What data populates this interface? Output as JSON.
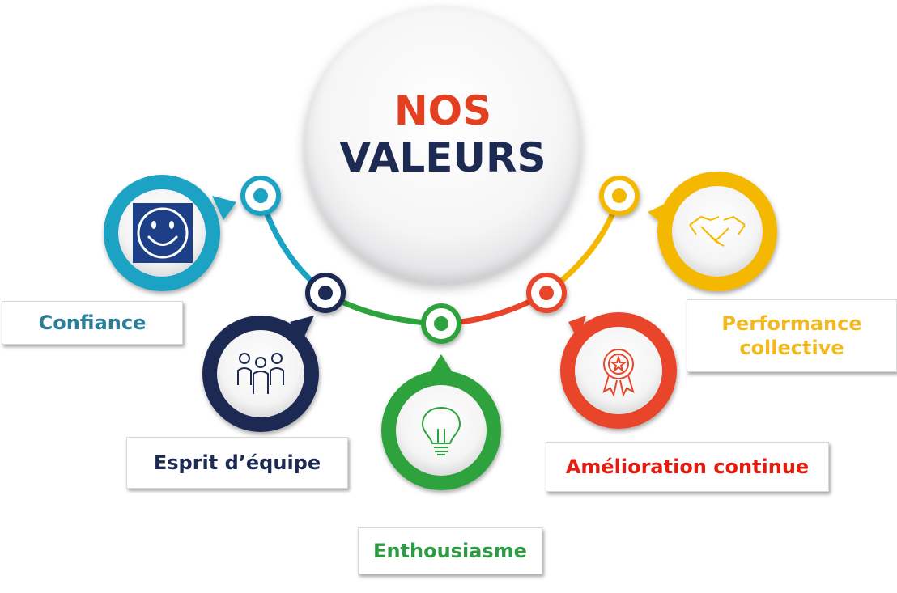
{
  "title": {
    "line1": "NOS",
    "line2": "VALEURS"
  },
  "colors": {
    "title_accent": "#e2401f",
    "title_dark": "#1d2a52",
    "confiance": "#1aa3c3",
    "esprit": "#1d2a52",
    "enthousiasme": "#2da33d",
    "amelioration": "#e8452a",
    "performance": "#f5b800"
  },
  "values": [
    {
      "key": "confiance",
      "label": "Confiance",
      "icon": "smiley-face-icon",
      "color": "#1aa3c3"
    },
    {
      "key": "esprit",
      "label": "Esprit d’équipe",
      "icon": "team-people-icon",
      "color": "#1d2a52"
    },
    {
      "key": "enthousiasme",
      "label": "Enthousiasme",
      "icon": "lightbulb-icon",
      "color": "#2da33d"
    },
    {
      "key": "amelioration",
      "label": "Amélioration continue",
      "icon": "award-rosette-icon",
      "color": "#e8452a"
    },
    {
      "key": "performance",
      "label": "Performance collective",
      "icon": "handshake-icon",
      "color": "#f5b800"
    }
  ]
}
